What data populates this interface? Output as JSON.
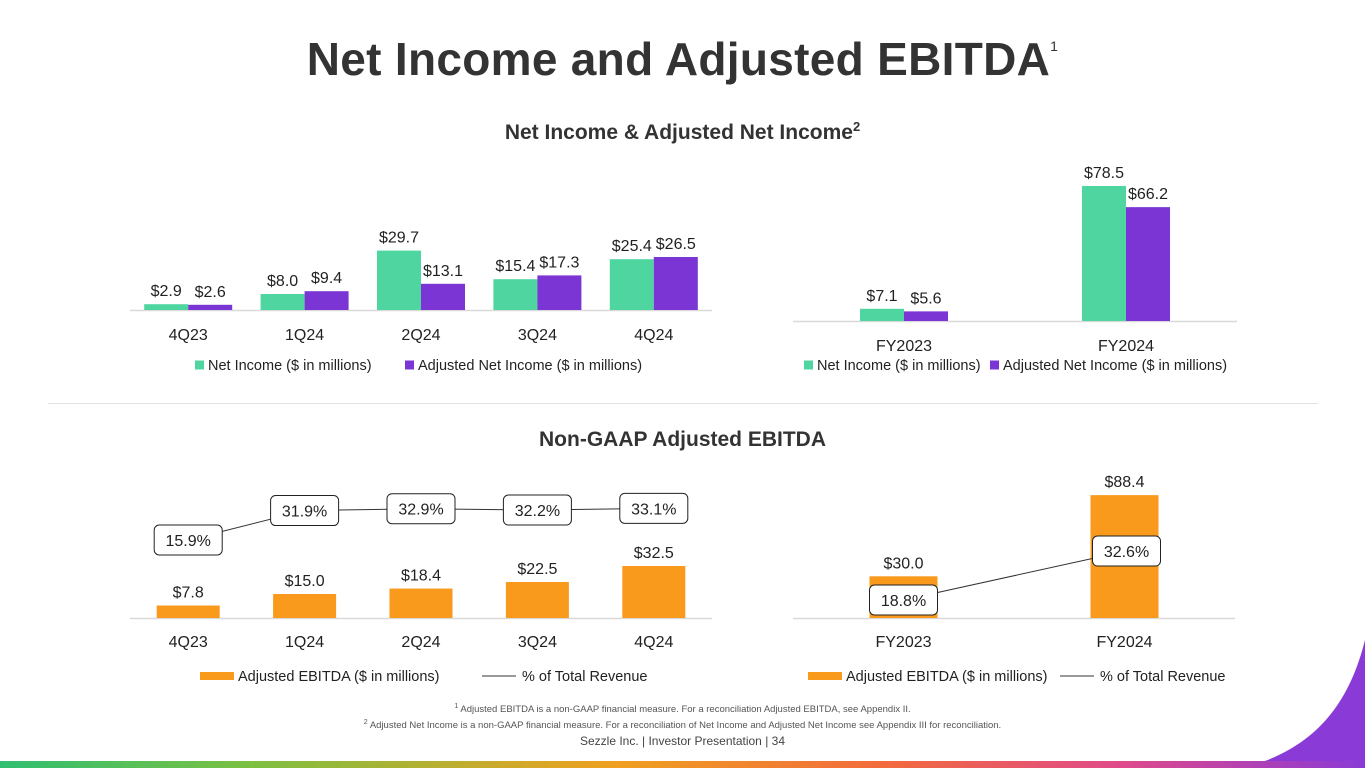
{
  "page": {
    "title": "Net Income and Adjusted EBITDA",
    "title_sup": "1",
    "section1_title": "Net Income & Adjusted Net Income",
    "section1_sup": "2",
    "section2_title": "Non-GAAP Adjusted EBITDA",
    "footnote1_sup": "1",
    "footnote1": "Adjusted EBITDA is a non-GAAP financial measure. For a reconciliation Adjusted EBITDA, see Appendix II.",
    "footnote2_sup": "2",
    "footnote2": "Adjusted Net Income is a non-GAAP financial measure. For a reconciliation of Net Income and Adjusted Net Income see Appendix III for reconciliation.",
    "footer": "Sezzle Inc. | Investor Presentation | 34"
  },
  "colors": {
    "net_income": "#4fd6a0",
    "adjusted_net_income": "#7b35d4",
    "ebitda": "#f99a1c",
    "line": "#333333"
  },
  "chart_data": [
    {
      "id": "ni_quarterly",
      "type": "bar",
      "categories": [
        "4Q23",
        "1Q24",
        "2Q24",
        "3Q24",
        "4Q24"
      ],
      "series": [
        {
          "name": "Net Income ($ in millions)",
          "values": [
            2.9,
            8.0,
            29.7,
            15.4,
            25.4
          ],
          "labels": [
            "$2.9",
            "$8.0",
            "$29.7",
            "$15.4",
            "$25.4"
          ]
        },
        {
          "name": "Adjusted Net Income ($ in millions)",
          "values": [
            2.6,
            9.4,
            13.1,
            17.3,
            26.5
          ],
          "labels": [
            "$2.6",
            "$9.4",
            "$13.1",
            "$17.3",
            "$26.5"
          ]
        }
      ],
      "ylim": [
        0,
        40
      ],
      "legend": "bottom"
    },
    {
      "id": "ni_annual",
      "type": "bar",
      "categories": [
        "FY2023",
        "FY2024"
      ],
      "series": [
        {
          "name": "Net Income ($ in millions)",
          "values": [
            7.1,
            78.5
          ],
          "labels": [
            "$7.1",
            "$78.5"
          ]
        },
        {
          "name": "Adjusted Net Income ($ in millions)",
          "values": [
            5.6,
            66.2
          ],
          "labels": [
            "$5.6",
            "$66.2"
          ]
        }
      ],
      "ylim": [
        0,
        100
      ],
      "legend": "bottom"
    },
    {
      "id": "ebitda_quarterly",
      "type": "bar",
      "categories": [
        "4Q23",
        "1Q24",
        "2Q24",
        "3Q24",
        "4Q24"
      ],
      "series": [
        {
          "name": "Adjusted EBITDA ($ in millions)",
          "values": [
            7.8,
            15.0,
            18.4,
            22.5,
            32.5
          ],
          "labels": [
            "$7.8",
            "$15.0",
            "$18.4",
            "$22.5",
            "$32.5"
          ]
        }
      ],
      "line_series": {
        "name": "% of Total Revenue",
        "values": [
          15.9,
          31.9,
          32.9,
          32.2,
          33.1
        ],
        "labels": [
          "15.9%",
          "31.9%",
          "32.9%",
          "32.2%",
          "33.1%"
        ]
      },
      "ylim": [
        0,
        40
      ],
      "legend": "bottom"
    },
    {
      "id": "ebitda_annual",
      "type": "bar",
      "categories": [
        "FY2023",
        "FY2024"
      ],
      "series": [
        {
          "name": "Adjusted EBITDA ($ in millions)",
          "values": [
            30.0,
            88.4
          ],
          "labels": [
            "$30.0",
            "$88.4"
          ]
        }
      ],
      "line_series": {
        "name": "% of Total Revenue",
        "values": [
          18.8,
          32.6
        ],
        "labels": [
          "18.8%",
          "32.6%"
        ]
      },
      "ylim": [
        0,
        100
      ],
      "legend": "bottom"
    }
  ]
}
